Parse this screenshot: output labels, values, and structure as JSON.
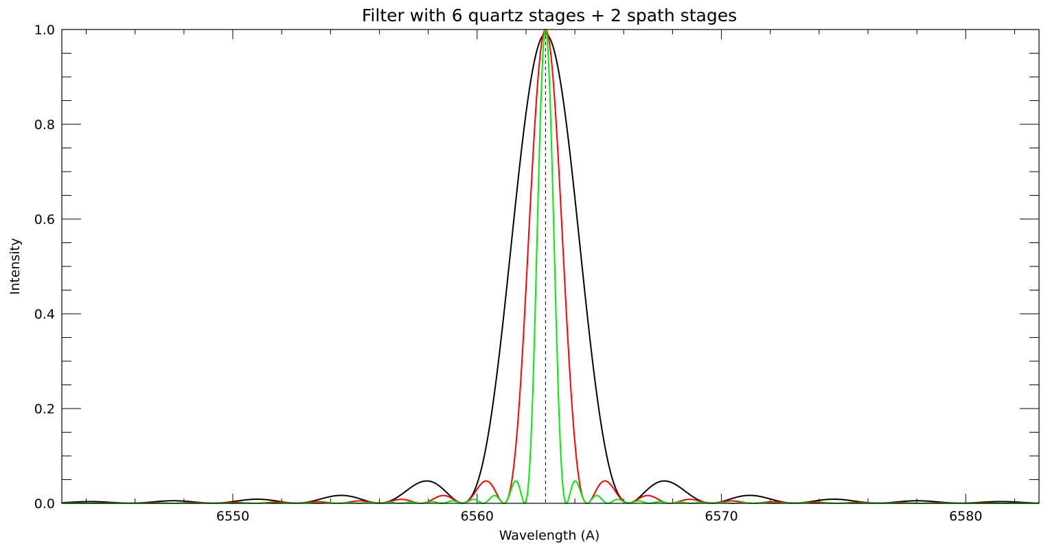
{
  "chart_data": {
    "type": "line",
    "title": "Filter with 6 quartz stages + 2 spath stages",
    "xlabel": "Wavelength (A)",
    "ylabel": "Intensity",
    "xlim": [
      6543,
      6583
    ],
    "ylim": [
      0,
      1.0
    ],
    "x_ticks": [
      6550,
      6560,
      6570,
      6580
    ],
    "x_tick_labels": [
      "6550",
      "6560",
      "6570",
      "6580"
    ],
    "y_ticks": [
      0,
      0.2,
      0.4,
      0.6,
      0.8,
      1.0
    ],
    "y_tick_labels": [
      "0.0",
      "0.2",
      "0.4",
      "0.6",
      "0.8",
      "1.0"
    ],
    "grid": false,
    "legend": "none",
    "center_line": {
      "x": 6562.8,
      "style": "dashed",
      "color": "#000000"
    },
    "series": [
      {
        "color": "#000000",
        "center": 6562.8,
        "first_zero_offset": 3.4,
        "x": [
          6544.1,
          6547.5,
          6551.4,
          6554.9,
          6558.2,
          6562.8,
          6567.8,
          6571.1,
          6574.5,
          6577.9,
          6581.3
        ],
        "y": [
          0.003,
          0.004,
          0.007,
          0.015,
          0.045,
          1.0,
          0.045,
          0.015,
          0.007,
          0.004,
          0.003
        ]
      },
      {
        "color": "#ff0000",
        "center": 6562.8,
        "first_zero_offset": 1.7,
        "x": [
          6555.8,
          6557.5,
          6559.2,
          6560.6,
          6562.8,
          6565.3,
          6567.0,
          6568.7,
          6570.4
        ],
        "y": [
          0.003,
          0.006,
          0.015,
          0.045,
          1.0,
          0.045,
          0.015,
          0.006,
          0.003
        ]
      },
      {
        "color": "#00ee00",
        "center": 6562.8,
        "first_zero_offset": 0.85,
        "x": [
          6558.5,
          6559.5,
          6560.5,
          6561.3,
          6562.0,
          6562.8,
          6564.3,
          6565.1,
          6565.9,
          6567.0
        ],
        "y": [
          0.002,
          0.004,
          0.008,
          0.015,
          0.045,
          1.0,
          0.045,
          0.015,
          0.008,
          0.003
        ]
      }
    ],
    "colors": {
      "axis": "#000000",
      "background": "#ffffff"
    }
  }
}
